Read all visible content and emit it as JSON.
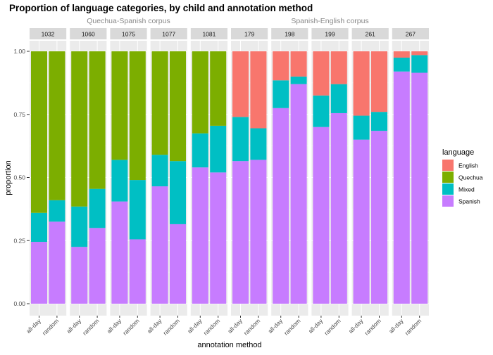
{
  "chart_data": {
    "type": "bar",
    "title": "Proportion of language categories, by child and annotation method",
    "xlabel": "annotation method",
    "ylabel": "proportion",
    "ylim": [
      0,
      1
    ],
    "yticks": [
      "0.00",
      "0.25",
      "0.50",
      "0.75",
      "1.00"
    ],
    "categories": [
      "all-day",
      "random"
    ],
    "groups": [
      {
        "label": "Quechua-Spanish corpus",
        "panels": [
          "1032",
          "1060",
          "1075",
          "1077",
          "1081"
        ]
      },
      {
        "label": "Spanish-English corpus",
        "panels": [
          "179",
          "198",
          "199",
          "261",
          "267"
        ]
      }
    ],
    "legend": {
      "title": "language",
      "position": "right",
      "entries": [
        "English",
        "Quechua",
        "Mixed",
        "Spanish"
      ]
    },
    "colors": {
      "English": "#F8766D",
      "Quechua": "#7CAE00",
      "Mixed": "#00BFC4",
      "Spanish": "#C77CFF"
    },
    "stack_order": [
      "Spanish",
      "Mixed",
      "Quechua",
      "English"
    ],
    "panels": [
      {
        "child": "1032",
        "bars": [
          {
            "category": "all-day",
            "Spanish": 0.245,
            "Mixed": 0.115,
            "Quechua": 0.64,
            "English": 0
          },
          {
            "category": "random",
            "Spanish": 0.325,
            "Mixed": 0.085,
            "Quechua": 0.59,
            "English": 0
          }
        ]
      },
      {
        "child": "1060",
        "bars": [
          {
            "category": "all-day",
            "Spanish": 0.225,
            "Mixed": 0.16,
            "Quechua": 0.615,
            "English": 0
          },
          {
            "category": "random",
            "Spanish": 0.3,
            "Mixed": 0.155,
            "Quechua": 0.545,
            "English": 0
          }
        ]
      },
      {
        "child": "1075",
        "bars": [
          {
            "category": "all-day",
            "Spanish": 0.405,
            "Mixed": 0.165,
            "Quechua": 0.43,
            "English": 0
          },
          {
            "category": "random",
            "Spanish": 0.255,
            "Mixed": 0.235,
            "Quechua": 0.51,
            "English": 0
          }
        ]
      },
      {
        "child": "1077",
        "bars": [
          {
            "category": "all-day",
            "Spanish": 0.465,
            "Mixed": 0.125,
            "Quechua": 0.41,
            "English": 0
          },
          {
            "category": "random",
            "Spanish": 0.315,
            "Mixed": 0.25,
            "Quechua": 0.435,
            "English": 0
          }
        ]
      },
      {
        "child": "1081",
        "bars": [
          {
            "category": "all-day",
            "Spanish": 0.54,
            "Mixed": 0.135,
            "Quechua": 0.325,
            "English": 0
          },
          {
            "category": "random",
            "Spanish": 0.52,
            "Mixed": 0.185,
            "Quechua": 0.295,
            "English": 0
          }
        ]
      },
      {
        "child": "179",
        "bars": [
          {
            "category": "all-day",
            "Spanish": 0.565,
            "Mixed": 0.175,
            "Quechua": 0,
            "English": 0.26
          },
          {
            "category": "random",
            "Spanish": 0.57,
            "Mixed": 0.125,
            "Quechua": 0,
            "English": 0.305
          }
        ]
      },
      {
        "child": "198",
        "bars": [
          {
            "category": "all-day",
            "Spanish": 0.775,
            "Mixed": 0.11,
            "Quechua": 0,
            "English": 0.115
          },
          {
            "category": "random",
            "Spanish": 0.87,
            "Mixed": 0.03,
            "Quechua": 0,
            "English": 0.1
          }
        ]
      },
      {
        "child": "199",
        "bars": [
          {
            "category": "all-day",
            "Spanish": 0.7,
            "Mixed": 0.125,
            "Quechua": 0,
            "English": 0.175
          },
          {
            "category": "random",
            "Spanish": 0.755,
            "Mixed": 0.115,
            "Quechua": 0,
            "English": 0.13
          }
        ]
      },
      {
        "child": "261",
        "bars": [
          {
            "category": "all-day",
            "Spanish": 0.65,
            "Mixed": 0.095,
            "Quechua": 0,
            "English": 0.255
          },
          {
            "category": "random",
            "Spanish": 0.685,
            "Mixed": 0.075,
            "Quechua": 0,
            "English": 0.24
          }
        ]
      },
      {
        "child": "267",
        "bars": [
          {
            "category": "all-day",
            "Spanish": 0.92,
            "Mixed": 0.055,
            "Quechua": 0,
            "English": 0.025
          },
          {
            "category": "random",
            "Spanish": 0.915,
            "Mixed": 0.07,
            "Quechua": 0,
            "English": 0.015
          }
        ]
      }
    ]
  }
}
